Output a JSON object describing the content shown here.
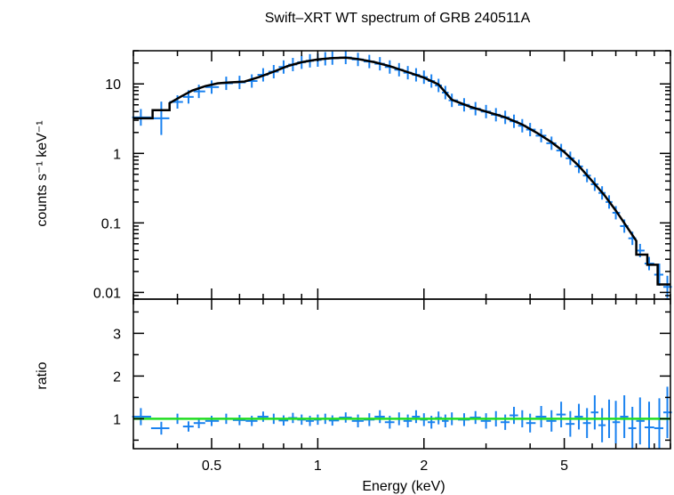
{
  "chart_data": [
    {
      "type": "scatter",
      "title": "Swift–XRT WT spectrum of GRB 240511A",
      "ylabel": "counts s⁻¹ keV⁻¹",
      "xlabel": "",
      "x_scale": "log",
      "y_scale": "log",
      "xlim": [
        0.3,
        10
      ],
      "ylim": [
        0.008,
        30
      ],
      "yticks": [
        0.01,
        0.1,
        1,
        10
      ],
      "ytick_labels": [
        "0.01",
        "0.1",
        "1",
        "10"
      ],
      "colors": {
        "data": "#1a82f0",
        "model": "#000000"
      },
      "series": [
        {
          "kind": "data",
          "points": [
            [
              0.315,
              3.3,
              0.015
            ],
            [
              0.36,
              3.2,
              0.03
            ],
            [
              0.4,
              5.5,
              0.012
            ],
            [
              0.43,
              6.5,
              0.012
            ],
            [
              0.46,
              7.8,
              0.012
            ],
            [
              0.5,
              9.0,
              0.012
            ],
            [
              0.55,
              10.2,
              0.012
            ],
            [
              0.6,
              10.5,
              0.012
            ],
            [
              0.65,
              11.0,
              0.012
            ],
            [
              0.7,
              13.5,
              0.012
            ],
            [
              0.75,
              15.0,
              0.012
            ],
            [
              0.8,
              17.5,
              0.012
            ],
            [
              0.85,
              19.0,
              0.012
            ],
            [
              0.9,
              20.5,
              0.012
            ],
            [
              0.95,
              21.5,
              0.012
            ],
            [
              1.0,
              22.0,
              0.012
            ],
            [
              1.05,
              23.0,
              0.012
            ],
            [
              1.1,
              23.5,
              0.012
            ],
            [
              1.2,
              24.0,
              0.012
            ],
            [
              1.3,
              22.5,
              0.012
            ],
            [
              1.4,
              21.0,
              0.012
            ],
            [
              1.5,
              19.5,
              0.012
            ],
            [
              1.6,
              17.5,
              0.012
            ],
            [
              1.7,
              16.0,
              0.012
            ],
            [
              1.8,
              14.5,
              0.012
            ],
            [
              1.9,
              13.5,
              0.012
            ],
            [
              2.0,
              12.5,
              0.012
            ],
            [
              2.1,
              11.0,
              0.012
            ],
            [
              2.2,
              9.5,
              0.012
            ],
            [
              2.3,
              7.5,
              0.012
            ],
            [
              2.4,
              5.8,
              0.012
            ],
            [
              2.6,
              5.0,
              0.012
            ],
            [
              2.8,
              4.4,
              0.012
            ],
            [
              3.0,
              4.0,
              0.012
            ],
            [
              3.2,
              3.6,
              0.012
            ],
            [
              3.4,
              3.3,
              0.012
            ],
            [
              3.6,
              2.9,
              0.012
            ],
            [
              3.8,
              2.5,
              0.012
            ],
            [
              4.0,
              2.2,
              0.012
            ],
            [
              4.3,
              1.8,
              0.012
            ],
            [
              4.6,
              1.4,
              0.012
            ],
            [
              4.9,
              1.1,
              0.012
            ],
            [
              5.2,
              0.85,
              0.012
            ],
            [
              5.5,
              0.65,
              0.012
            ],
            [
              5.8,
              0.48,
              0.012
            ],
            [
              6.1,
              0.36,
              0.012
            ],
            [
              6.4,
              0.27,
              0.012
            ],
            [
              6.7,
              0.2,
              0.012
            ],
            [
              7.0,
              0.14,
              0.012
            ],
            [
              7.4,
              0.09,
              0.012
            ],
            [
              7.8,
              0.06,
              0.012
            ],
            [
              8.2,
              0.04,
              0.012
            ],
            [
              8.7,
              0.026,
              0.012
            ],
            [
              9.3,
              0.018,
              0.02
            ],
            [
              9.8,
              0.012,
              0.02
            ]
          ]
        },
        {
          "kind": "model",
          "points": [
            [
              0.3,
              3.2
            ],
            [
              0.34,
              3.2
            ],
            [
              0.34,
              4.2
            ],
            [
              0.38,
              4.2
            ],
            [
              0.38,
              5.3
            ],
            [
              0.41,
              6.6
            ],
            [
              0.44,
              8.0
            ],
            [
              0.48,
              9.3
            ],
            [
              0.52,
              10.2
            ],
            [
              0.56,
              10.5
            ],
            [
              0.62,
              10.8
            ],
            [
              0.68,
              12.5
            ],
            [
              0.75,
              15.0
            ],
            [
              0.82,
              18.0
            ],
            [
              0.9,
              20.5
            ],
            [
              1.0,
              22.5
            ],
            [
              1.1,
              23.5
            ],
            [
              1.2,
              23.8
            ],
            [
              1.3,
              22.8
            ],
            [
              1.45,
              20.5
            ],
            [
              1.6,
              18.0
            ],
            [
              1.8,
              14.8
            ],
            [
              2.0,
              12.3
            ],
            [
              2.2,
              9.8
            ],
            [
              2.4,
              5.9
            ],
            [
              2.7,
              4.7
            ],
            [
              3.0,
              4.0
            ],
            [
              3.4,
              3.3
            ],
            [
              3.8,
              2.6
            ],
            [
              4.2,
              1.95
            ],
            [
              4.6,
              1.45
            ],
            [
              5.0,
              1.05
            ],
            [
              5.5,
              0.66
            ],
            [
              6.0,
              0.4
            ],
            [
              6.5,
              0.25
            ],
            [
              7.0,
              0.15
            ],
            [
              7.5,
              0.09
            ],
            [
              8.0,
              0.055
            ],
            [
              8.0,
              0.035
            ],
            [
              8.6,
              0.035
            ],
            [
              8.6,
              0.025
            ],
            [
              9.2,
              0.025
            ],
            [
              9.2,
              0.013
            ],
            [
              10.0,
              0.013
            ]
          ]
        }
      ]
    },
    {
      "type": "scatter",
      "title": "",
      "ylabel": "ratio",
      "xlabel": "Energy (keV)",
      "x_scale": "log",
      "xlim": [
        0.3,
        10
      ],
      "ylim": [
        0.3,
        3.8
      ],
      "xticks": [
        0.5,
        1,
        2,
        5
      ],
      "xtick_labels": [
        "0.5",
        "1",
        "2",
        "5"
      ],
      "yticks": [
        1,
        2,
        3
      ],
      "ytick_labels": [
        "1",
        "2",
        "3"
      ],
      "reference_line": {
        "y": 1,
        "color": "#22dd22"
      },
      "colors": {
        "data": "#1a82f0"
      },
      "series": [
        {
          "kind": "data",
          "points": [
            [
              0.315,
              1.05,
              0.2
            ],
            [
              0.36,
              0.78,
              0.15
            ],
            [
              0.4,
              1.0,
              0.12
            ],
            [
              0.43,
              0.82,
              0.12
            ],
            [
              0.46,
              0.9,
              0.12
            ],
            [
              0.5,
              0.95,
              0.12
            ],
            [
              0.55,
              1.0,
              0.12
            ],
            [
              0.6,
              0.97,
              0.12
            ],
            [
              0.65,
              0.95,
              0.12
            ],
            [
              0.7,
              1.05,
              0.12
            ],
            [
              0.75,
              1.0,
              0.12
            ],
            [
              0.8,
              0.96,
              0.12
            ],
            [
              0.85,
              1.02,
              0.12
            ],
            [
              0.9,
              0.98,
              0.12
            ],
            [
              0.95,
              0.95,
              0.12
            ],
            [
              1.0,
              0.98,
              0.12
            ],
            [
              1.05,
              1.0,
              0.12
            ],
            [
              1.1,
              0.96,
              0.12
            ],
            [
              1.2,
              1.03,
              0.12
            ],
            [
              1.3,
              0.95,
              0.15
            ],
            [
              1.4,
              0.98,
              0.15
            ],
            [
              1.5,
              1.05,
              0.15
            ],
            [
              1.6,
              0.92,
              0.15
            ],
            [
              1.7,
              1.0,
              0.15
            ],
            [
              1.8,
              0.95,
              0.15
            ],
            [
              1.9,
              1.05,
              0.15
            ],
            [
              2.0,
              0.98,
              0.15
            ],
            [
              2.1,
              0.92,
              0.15
            ],
            [
              2.2,
              1.02,
              0.15
            ],
            [
              2.3,
              0.95,
              0.15
            ],
            [
              2.4,
              1.0,
              0.15
            ],
            [
              2.6,
              0.98,
              0.15
            ],
            [
              2.8,
              1.03,
              0.15
            ],
            [
              3.0,
              0.95,
              0.18
            ],
            [
              3.2,
              1.0,
              0.18
            ],
            [
              3.4,
              0.92,
              0.18
            ],
            [
              3.6,
              1.08,
              0.2
            ],
            [
              3.8,
              1.0,
              0.2
            ],
            [
              4.0,
              0.9,
              0.22
            ],
            [
              4.3,
              1.05,
              0.25
            ],
            [
              4.6,
              0.95,
              0.25
            ],
            [
              4.9,
              1.1,
              0.3
            ],
            [
              5.2,
              0.88,
              0.3
            ],
            [
              5.5,
              1.05,
              0.3
            ],
            [
              5.8,
              0.9,
              0.35
            ],
            [
              6.1,
              1.15,
              0.4
            ],
            [
              6.4,
              0.85,
              0.4
            ],
            [
              6.7,
              1.0,
              0.45
            ],
            [
              7.0,
              0.92,
              0.5
            ],
            [
              7.4,
              1.05,
              0.5
            ],
            [
              7.8,
              0.78,
              0.5
            ],
            [
              8.2,
              0.95,
              0.55
            ],
            [
              8.7,
              0.8,
              0.6
            ],
            [
              9.3,
              0.78,
              0.7
            ],
            [
              9.8,
              1.15,
              0.6
            ]
          ]
        }
      ]
    }
  ]
}
